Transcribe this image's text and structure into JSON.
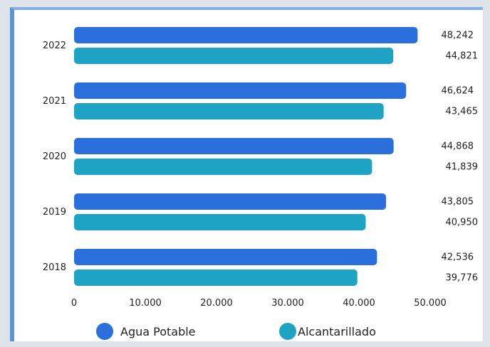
{
  "chart_data": {
    "type": "bar",
    "orientation": "horizontal",
    "categories": [
      "2022",
      "2021",
      "2020",
      "2019",
      "2018"
    ],
    "series": [
      {
        "name": "Agua Potable",
        "color": "#2a6fdb",
        "values": [
          48242,
          46624,
          44868,
          43805,
          42536
        ],
        "labels": [
          "48,242",
          "46,624",
          "44,868",
          "43,805",
          "42,536"
        ]
      },
      {
        "name": "Alcantarillado",
        "color": "#1fa3c4",
        "values": [
          44821,
          43465,
          41839,
          40950,
          39776
        ],
        "labels": [
          "44,821",
          "43,465",
          "41,839",
          "40,950",
          "39,776"
        ]
      }
    ],
    "xticks": [
      0,
      10000,
      20000,
      30000,
      40000,
      50000
    ],
    "xtick_labels": [
      "0",
      "10.000",
      "20.000",
      "30.000",
      "40.000",
      "50.000"
    ],
    "xlim": [
      0,
      50000
    ],
    "grid": false,
    "legend": "bottom"
  }
}
